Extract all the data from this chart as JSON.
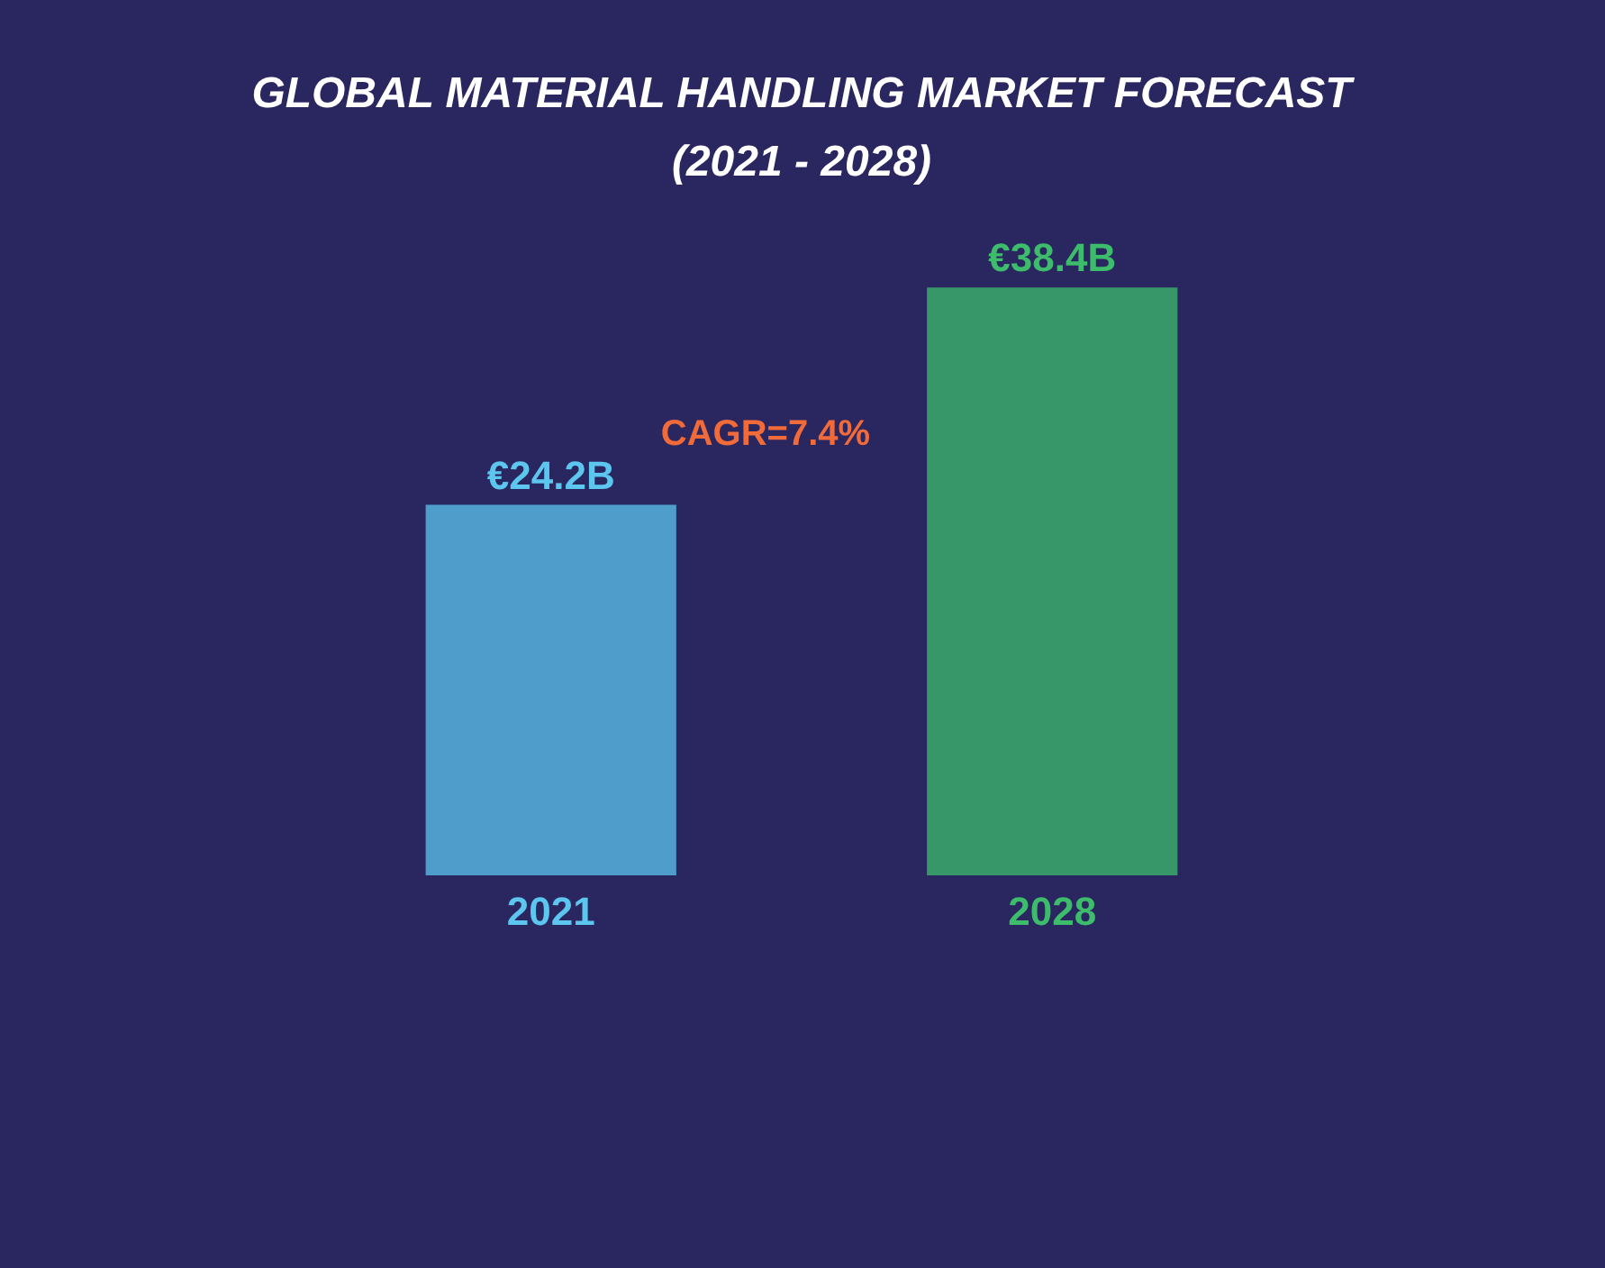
{
  "chart_data": {
    "type": "bar",
    "title": [
      "GLOBAL MATERIAL HANDLING MARKET FORECAST",
      "(2021 - 2028)"
    ],
    "categories": [
      "2021",
      "2028"
    ],
    "values": [
      24.2,
      38.4
    ],
    "colors": [
      "#5cc6ee",
      "#3dbd6c"
    ],
    "value_labels": [
      "€24.2B",
      "€38.4B"
    ],
    "annotations": [
      "CAGR=7.4%"
    ],
    "tick_labels": "x"
  }
}
